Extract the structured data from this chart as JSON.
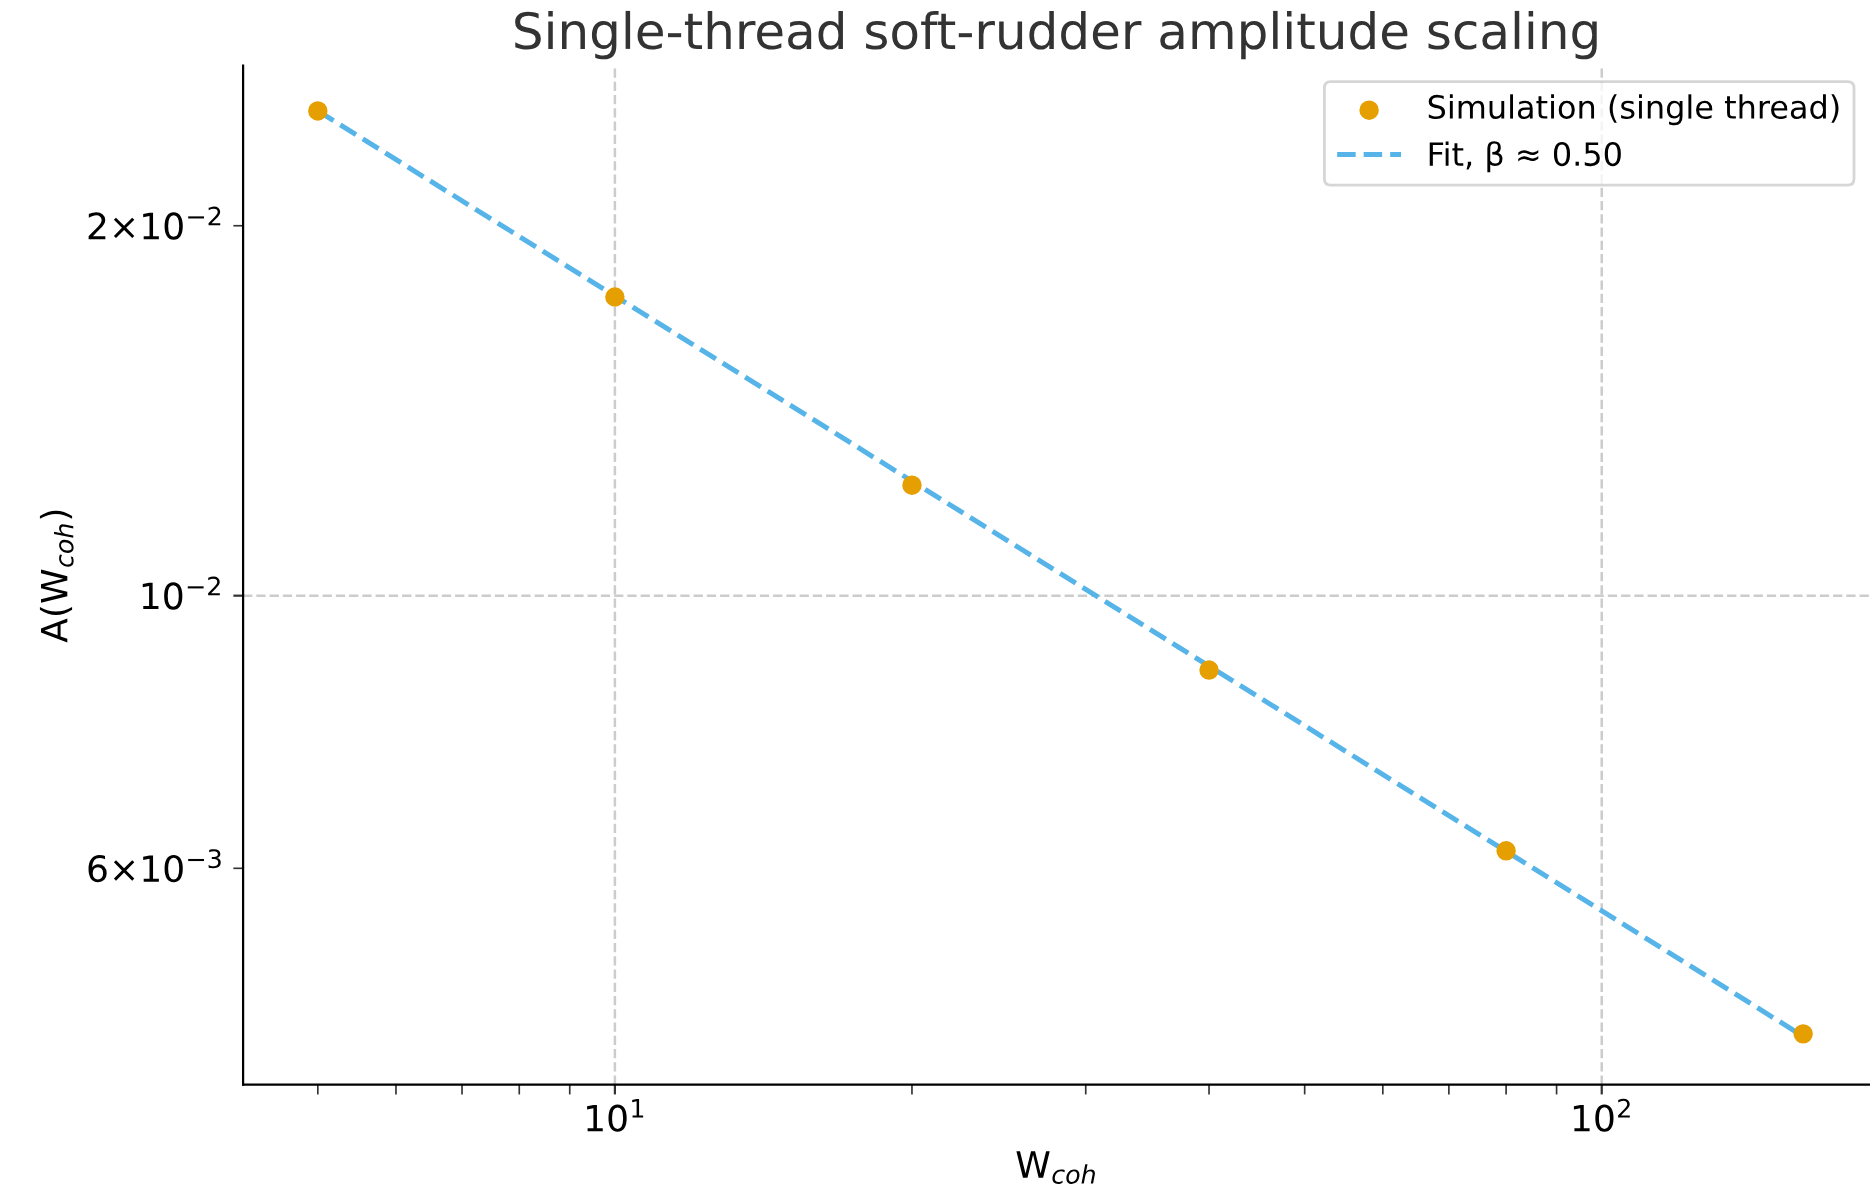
{
  "chart_data": {
    "type": "scatter",
    "title": "Single-thread soft-rudder amplitude scaling",
    "xlabel": "W$_{coh}$",
    "ylabel": "A(W$_{coh}$)",
    "log": "xy",
    "grid": true,
    "legend": "top right",
    "x": [
      5,
      10,
      20,
      40,
      80,
      160
    ],
    "series": [
      {
        "name": "Simulation (single thread)",
        "color": "#e69f00",
        "marker": "circle",
        "values": [
          0.0248,
          0.0175,
          0.0123,
          0.0087,
          0.0062,
          0.0044
        ]
      },
      {
        "name": "Fit, β ≈ 0.50",
        "type": "line",
        "color": "#56b4e9",
        "line_style": "dashed",
        "marker": "none",
        "x": [
          5,
          160
        ],
        "values": [
          0.0248,
          0.00438
        ]
      }
    ],
    "xlim": [
      4.2,
      187
    ],
    "ylim": [
      0.004,
      0.027
    ],
    "xticks": [
      {
        "value": 10,
        "label": "10$^{1}$"
      },
      {
        "value": 100,
        "label": "10$^{2}$"
      }
    ],
    "yticks": [
      {
        "value": 0.006,
        "label": "6×10$^{−3}$"
      },
      {
        "value": 0.01,
        "label": "10$^{−2}$"
      },
      {
        "value": 0.02,
        "label": "2×10$^{−2}$"
      }
    ]
  }
}
